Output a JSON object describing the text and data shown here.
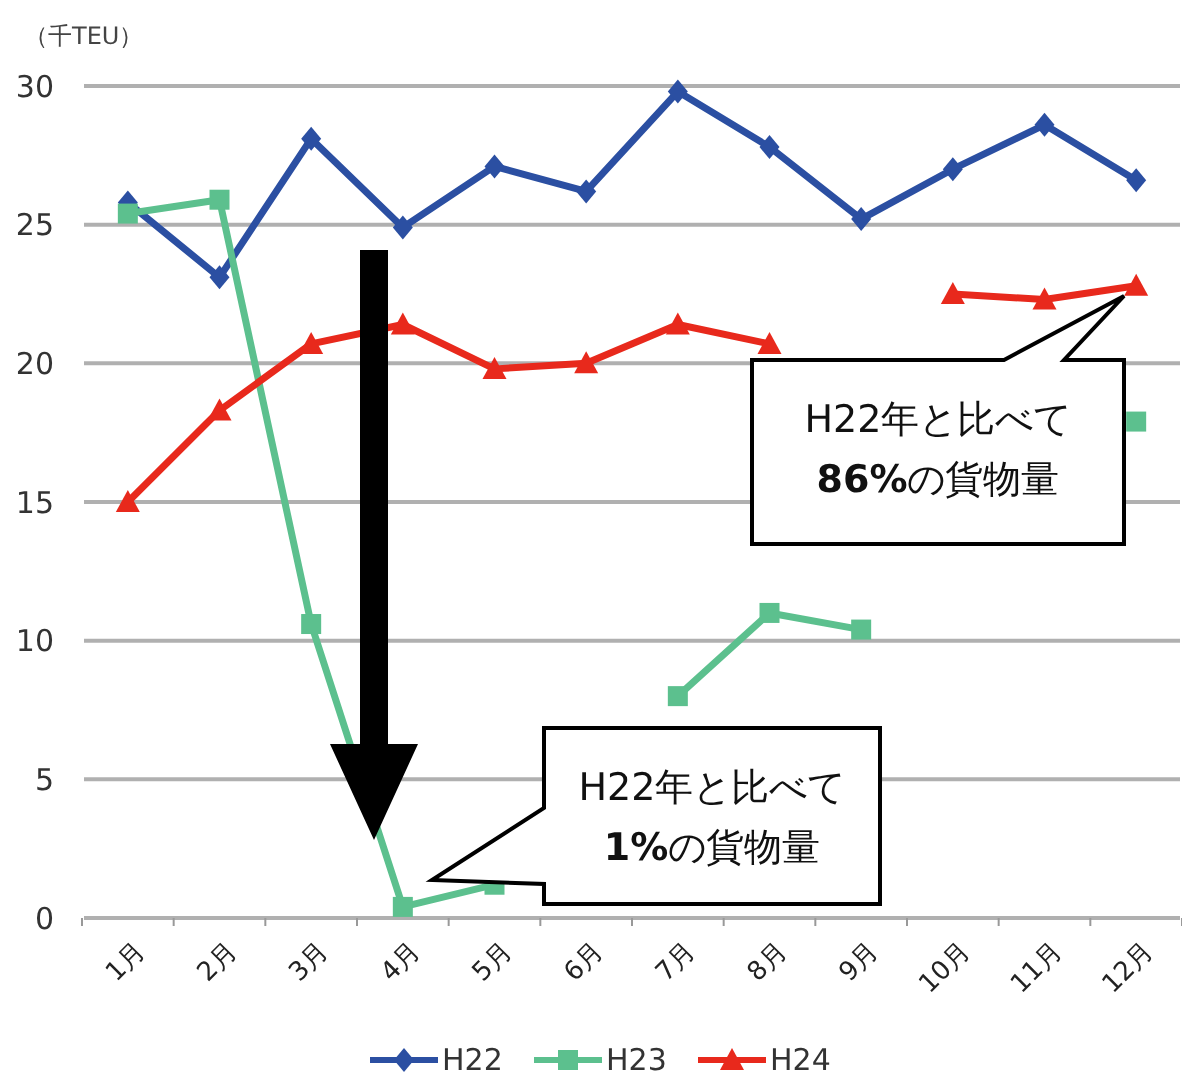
{
  "chart_data": {
    "type": "line",
    "ylabel": "（千TEU）",
    "categories": [
      "1月",
      "2月",
      "3月",
      "4月",
      "5月",
      "6月",
      "7月",
      "8月",
      "9月",
      "10月",
      "11月",
      "12月"
    ],
    "ylim": [
      0,
      30
    ],
    "yticks": [
      0,
      5,
      10,
      15,
      20,
      25,
      30
    ],
    "grid": "y",
    "legend": "bottom",
    "series": [
      {
        "name": "H22",
        "color": "#2b4fa2",
        "marker": "diamond",
        "values": [
          25.8,
          23.1,
          28.1,
          24.9,
          27.1,
          26.2,
          29.8,
          27.8,
          25.2,
          27.0,
          28.6,
          26.6
        ]
      },
      {
        "name": "H23",
        "color": "#5cc08e",
        "marker": "square",
        "values": [
          25.4,
          25.9,
          10.6,
          0.4,
          1.2,
          null,
          8.0,
          11.0,
          10.4,
          null,
          null,
          17.9
        ]
      },
      {
        "name": "H24",
        "color": "#e8291c",
        "marker": "triangle",
        "values": [
          15.0,
          18.3,
          20.7,
          21.4,
          19.8,
          20.0,
          21.4,
          20.7,
          null,
          22.5,
          22.3,
          22.8
        ]
      }
    ],
    "annotations": [
      "H22年と比べて\n86%の貨物量",
      "H22年と比べて\n1%の貨物量"
    ]
  }
}
